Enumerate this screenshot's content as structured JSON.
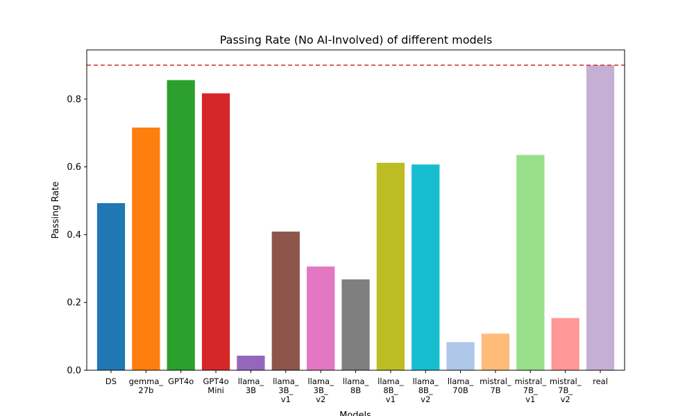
{
  "chart_data": {
    "type": "bar",
    "title": "Passing Rate (No AI-Involved) of different models",
    "xlabel": "Models",
    "ylabel": "Passing Rate",
    "ylim": [
      0,
      0.945
    ],
    "yticks": [
      "0.0",
      "0.2",
      "0.4",
      "0.6",
      "0.8"
    ],
    "ytick_values": [
      0,
      0.2,
      0.4,
      0.6,
      0.8
    ],
    "grid": false,
    "legend": "none",
    "reference_line": {
      "value": 0.9,
      "style": "dashed",
      "color": "#d62728"
    },
    "categories": [
      [
        "DS"
      ],
      [
        "gemma_",
        "27b"
      ],
      [
        "GPT4o"
      ],
      [
        "GPT4o",
        "Mini"
      ],
      [
        "llama_",
        "3B"
      ],
      [
        "llama_",
        "3B_",
        "v1"
      ],
      [
        "llama_",
        "3B_",
        "v2"
      ],
      [
        "llama_",
        "8B"
      ],
      [
        "llama_",
        "8B_",
        "v1"
      ],
      [
        "llama_",
        "8B_",
        "v2"
      ],
      [
        "llama_",
        "70B"
      ],
      [
        "mistral_",
        "7B"
      ],
      [
        "mistral_",
        "7B_",
        "v1"
      ],
      [
        "mistral_",
        "7B_",
        "v2"
      ],
      [
        "real"
      ]
    ],
    "values": [
      0.493,
      0.716,
      0.856,
      0.817,
      0.043,
      0.409,
      0.306,
      0.268,
      0.612,
      0.607,
      0.083,
      0.108,
      0.635,
      0.154,
      0.9
    ],
    "colors": [
      "#1f77b4",
      "#ff7f0e",
      "#2ca02c",
      "#d62728",
      "#9467bd",
      "#8c564b",
      "#e377c2",
      "#7f7f7f",
      "#bcbd22",
      "#17becf",
      "#aec7e8",
      "#ffbb78",
      "#98df8a",
      "#ff9896",
      "#c5b0d5"
    ]
  }
}
